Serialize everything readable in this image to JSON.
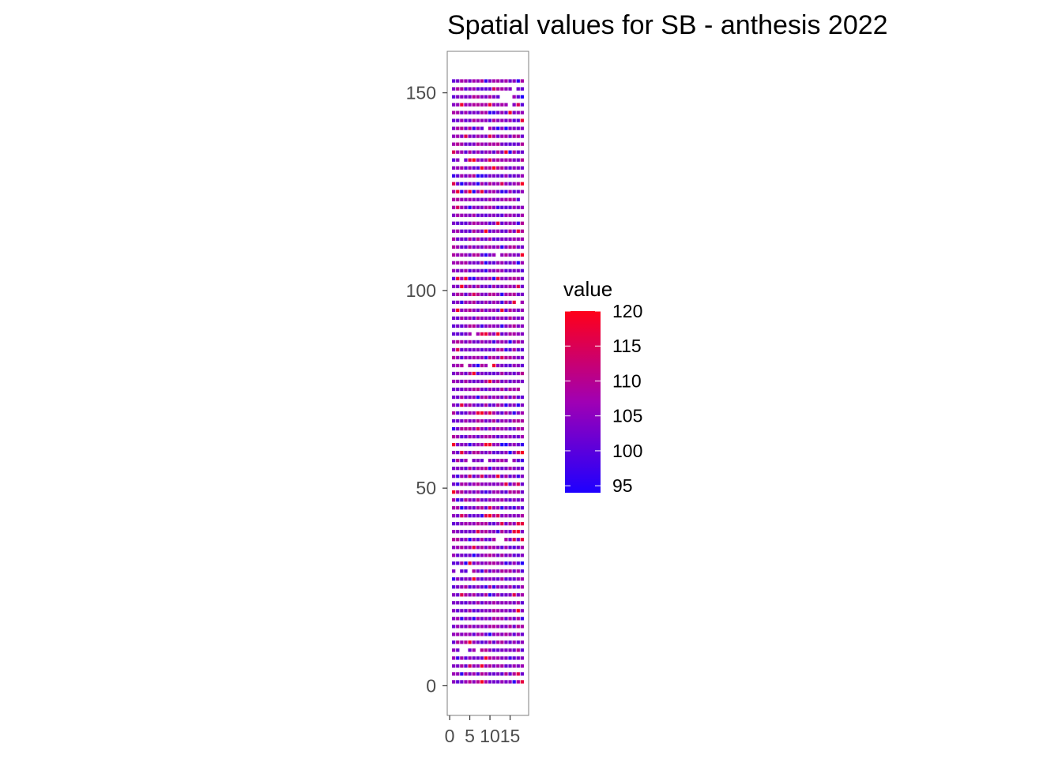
{
  "chart_data": {
    "type": "heatmap",
    "title": "Spatial values for SB - anthesis 2022",
    "xlabel": "",
    "ylabel": "",
    "x_ticks": [
      0,
      5,
      10,
      15
    ],
    "y_ticks": [
      0,
      50,
      100,
      150
    ],
    "xlim": [
      -0.6,
      19.6
    ],
    "ylim": [
      -7.5,
      160.5
    ],
    "grid": {
      "columns": {
        "start": 1,
        "end": 18,
        "step": 1
      },
      "rows": {
        "start": 1,
        "end": 153,
        "step": 2
      }
    },
    "value_range": [
      94,
      120
    ],
    "color_low": "#1e00ff",
    "color_mid": "#a000b4",
    "color_high": "#ff0019",
    "value_distribution_note": "estimated cell values; mostly 100-110 with scattered highs near 115-120 and lows near 95",
    "legend": {
      "title": "value",
      "position": "right",
      "breaks": [
        120,
        115,
        110,
        105,
        100,
        95
      ]
    },
    "empty_cells": [
      [
        3,
        9
      ],
      [
        4,
        9
      ],
      [
        7,
        9
      ],
      [
        2,
        29
      ],
      [
        5,
        29
      ],
      [
        12,
        37
      ],
      [
        13,
        37
      ],
      [
        5,
        57
      ],
      [
        9,
        57
      ],
      [
        15,
        57
      ],
      [
        4,
        81
      ],
      [
        10,
        81
      ],
      [
        18,
        75
      ],
      [
        6,
        89
      ],
      [
        17,
        97
      ],
      [
        12,
        109
      ],
      [
        18,
        123
      ],
      [
        3,
        133
      ],
      [
        9,
        141
      ],
      [
        15,
        147
      ],
      [
        13,
        149
      ],
      [
        14,
        149
      ],
      [
        15,
        149
      ],
      [
        16,
        151
      ]
    ]
  }
}
